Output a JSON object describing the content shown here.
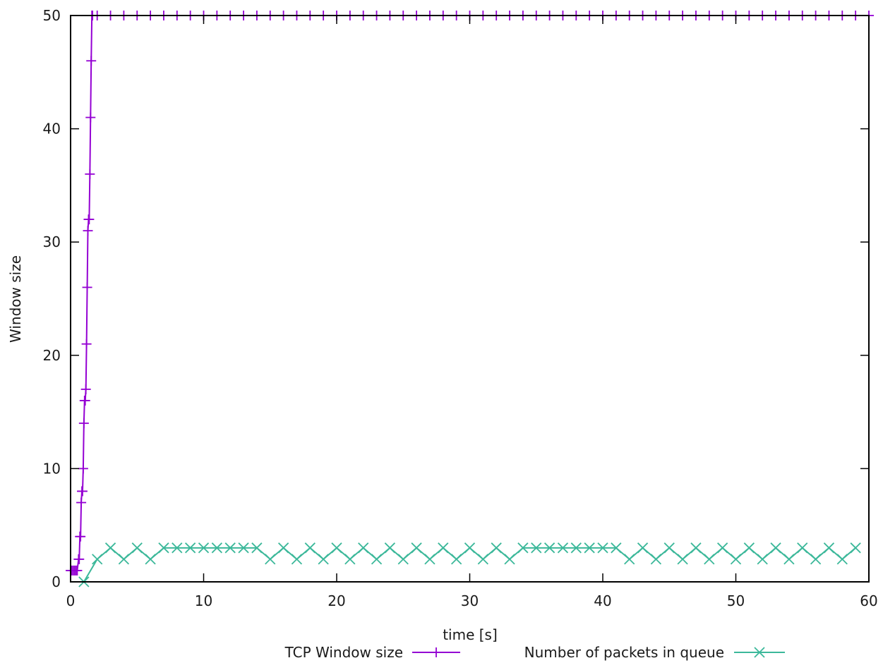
{
  "chart_data": {
    "type": "line",
    "title": "",
    "xlabel": "time [s]",
    "ylabel": "Window size",
    "xlim": [
      0,
      60
    ],
    "ylim": [
      0,
      50
    ],
    "xticks": [
      "0",
      "10",
      "20",
      "30",
      "40",
      "50",
      "60"
    ],
    "yticks": [
      "0",
      "10",
      "20",
      "30",
      "40",
      "50"
    ],
    "grid": false,
    "legend_position": "bottom",
    "series": [
      {
        "name": "TCP Window size",
        "color": "#9400d3",
        "marker": "plus",
        "x": [
          0,
          0.1,
          0.2,
          0.3,
          0.4,
          0.5,
          0.6,
          0.65,
          0.7,
          0.75,
          0.8,
          0.85,
          0.9,
          0.95,
          1.0,
          1.05,
          1.1,
          1.15,
          1.2,
          1.25,
          1.3,
          1.35,
          1.4,
          1.45,
          1.5,
          1.55,
          1.6,
          1.65,
          2,
          3,
          4,
          5,
          6,
          7,
          8,
          9,
          10,
          11,
          12,
          13,
          14,
          15,
          16,
          17,
          18,
          19,
          20,
          21,
          22,
          23,
          24,
          25,
          26,
          27,
          28,
          29,
          30,
          31,
          32,
          33,
          34,
          35,
          36,
          37,
          38,
          39,
          40,
          41,
          42,
          43,
          44,
          45,
          46,
          47,
          48,
          49,
          50,
          51,
          52,
          53,
          54,
          55,
          56,
          57,
          58,
          59,
          60
        ],
        "y": [
          1,
          1,
          1,
          1,
          1,
          1,
          2,
          2,
          4,
          4,
          7,
          8,
          8,
          10,
          14,
          16,
          16,
          17,
          21,
          26,
          31,
          32,
          32,
          36,
          41,
          46,
          50,
          50,
          50,
          50,
          50,
          50,
          50,
          50,
          50,
          50,
          50,
          50,
          50,
          50,
          50,
          50,
          50,
          50,
          50,
          50,
          50,
          50,
          50,
          50,
          50,
          50,
          50,
          50,
          50,
          50,
          50,
          50,
          50,
          50,
          50,
          50,
          50,
          50,
          50,
          50,
          50,
          50,
          50,
          50,
          50,
          50,
          50,
          50,
          50,
          50,
          50,
          50,
          50,
          50,
          50,
          50,
          50,
          50,
          50,
          50,
          50
        ]
      },
      {
        "name": "Number of packets in queue",
        "color": "#3cb89a",
        "marker": "cross",
        "x": [
          1,
          2,
          3,
          4,
          5,
          6,
          7,
          8,
          9,
          10,
          11,
          12,
          13,
          14,
          15,
          16,
          17,
          18,
          19,
          20,
          21,
          22,
          23,
          24,
          25,
          26,
          27,
          28,
          29,
          30,
          31,
          32,
          33,
          34,
          35,
          36,
          37,
          38,
          39,
          40,
          41,
          42,
          43,
          44,
          45,
          46,
          47,
          48,
          49,
          50,
          51,
          52,
          53,
          54,
          55,
          56,
          57,
          58,
          59
        ],
        "y": [
          0,
          2,
          3,
          2,
          3,
          2,
          3,
          3,
          3,
          3,
          3,
          3,
          3,
          3,
          2,
          3,
          2,
          3,
          2,
          3,
          2,
          3,
          2,
          3,
          2,
          3,
          2,
          3,
          2,
          3,
          2,
          3,
          2,
          3,
          3,
          3,
          3,
          3,
          3,
          3,
          3,
          2,
          3,
          2,
          3,
          2,
          3,
          2,
          3,
          2,
          3,
          2,
          3,
          2,
          3,
          2,
          3,
          2,
          3
        ]
      }
    ]
  }
}
